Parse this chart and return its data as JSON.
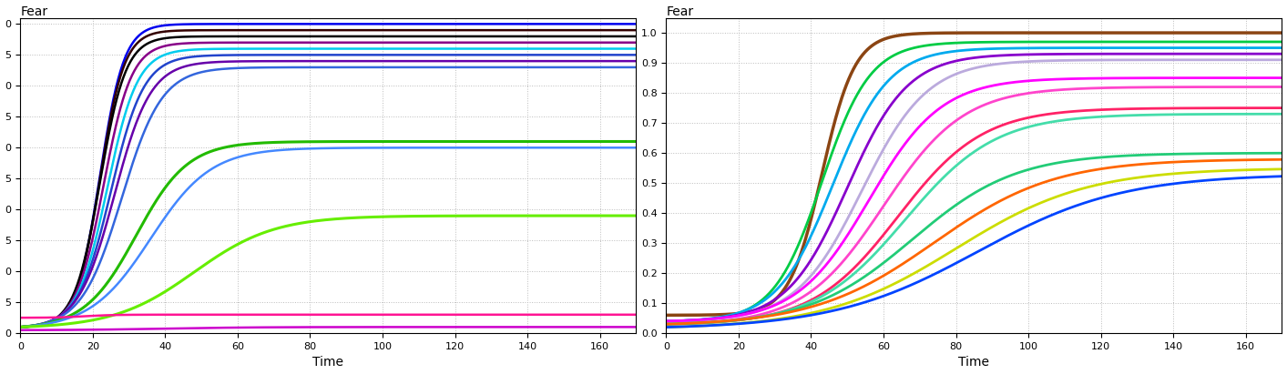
{
  "title_left": "Fear",
  "title_right": "Fear",
  "xlabel": "Time",
  "t_max": 170,
  "left_curves": [
    {
      "L": 1.0,
      "k": 0.3,
      "x0": 22,
      "y0": 0.02,
      "color": "#0000EE",
      "lw": 1.8
    },
    {
      "L": 0.98,
      "k": 0.3,
      "x0": 22,
      "y0": 0.02,
      "color": "#330000",
      "lw": 1.8
    },
    {
      "L": 0.96,
      "k": 0.28,
      "x0": 22,
      "y0": 0.02,
      "color": "#000000",
      "lw": 1.8
    },
    {
      "L": 0.94,
      "k": 0.26,
      "x0": 23,
      "y0": 0.02,
      "color": "#880088",
      "lw": 1.8
    },
    {
      "L": 0.92,
      "k": 0.24,
      "x0": 24,
      "y0": 0.02,
      "color": "#00CCEE",
      "lw": 1.8
    },
    {
      "L": 0.9,
      "k": 0.22,
      "x0": 25,
      "y0": 0.02,
      "color": "#2244CC",
      "lw": 1.8
    },
    {
      "L": 0.88,
      "k": 0.2,
      "x0": 26,
      "y0": 0.02,
      "color": "#6600AA",
      "lw": 1.8
    },
    {
      "L": 0.86,
      "k": 0.18,
      "x0": 28,
      "y0": 0.02,
      "color": "#3366DD",
      "lw": 1.8
    },
    {
      "L": 0.62,
      "k": 0.14,
      "x0": 32,
      "y0": 0.02,
      "color": "#22BB00",
      "lw": 2.2
    },
    {
      "L": 0.6,
      "k": 0.12,
      "x0": 36,
      "y0": 0.02,
      "color": "#4488FF",
      "lw": 1.8
    },
    {
      "L": 0.38,
      "k": 0.09,
      "x0": 48,
      "y0": 0.02,
      "color": "#66EE00",
      "lw": 2.2
    },
    {
      "L": 0.06,
      "k": 0.25,
      "x0": 18,
      "y0": 0.05,
      "color": "#FF1493",
      "lw": 1.8
    },
    {
      "L": 0.02,
      "k": 0.08,
      "x0": 40,
      "y0": 0.01,
      "color": "#CC00CC",
      "lw": 1.8
    }
  ],
  "right_curves": [
    {
      "L": 1.0,
      "k": 0.22,
      "x0": 43,
      "y0": 0.06,
      "color": "#8B4513",
      "lw": 2.5
    },
    {
      "L": 0.97,
      "k": 0.15,
      "x0": 43,
      "y0": 0.04,
      "color": "#00CC44",
      "lw": 2.0
    },
    {
      "L": 0.95,
      "k": 0.13,
      "x0": 46,
      "y0": 0.04,
      "color": "#00AAEE",
      "lw": 2.0
    },
    {
      "L": 0.93,
      "k": 0.12,
      "x0": 50,
      "y0": 0.04,
      "color": "#8800CC",
      "lw": 2.0
    },
    {
      "L": 0.91,
      "k": 0.11,
      "x0": 54,
      "y0": 0.04,
      "color": "#BBAADD",
      "lw": 2.0
    },
    {
      "L": 0.85,
      "k": 0.1,
      "x0": 56,
      "y0": 0.04,
      "color": "#FF00FF",
      "lw": 2.0
    },
    {
      "L": 0.82,
      "k": 0.09,
      "x0": 60,
      "y0": 0.03,
      "color": "#FF44CC",
      "lw": 2.0
    },
    {
      "L": 0.75,
      "k": 0.085,
      "x0": 64,
      "y0": 0.03,
      "color": "#FF2266",
      "lw": 2.0
    },
    {
      "L": 0.73,
      "k": 0.08,
      "x0": 66,
      "y0": 0.03,
      "color": "#44DDAA",
      "lw": 2.0
    },
    {
      "L": 0.6,
      "k": 0.07,
      "x0": 68,
      "y0": 0.03,
      "color": "#22CC77",
      "lw": 2.0
    },
    {
      "L": 0.58,
      "k": 0.06,
      "x0": 74,
      "y0": 0.03,
      "color": "#FF6600",
      "lw": 2.0
    },
    {
      "L": 0.55,
      "k": 0.055,
      "x0": 80,
      "y0": 0.02,
      "color": "#CCDD00",
      "lw": 2.0
    },
    {
      "L": 0.53,
      "k": 0.05,
      "x0": 86,
      "y0": 0.02,
      "color": "#0044FF",
      "lw": 2.0
    }
  ],
  "left_ytick_positions": [
    0.0,
    0.1,
    0.2,
    0.3,
    0.4,
    0.5,
    0.6,
    0.7,
    0.8,
    0.9,
    1.0
  ],
  "left_ytick_labels": [
    "0",
    "5",
    "0",
    "5",
    "0",
    "5",
    "0",
    "5",
    "0",
    "5",
    "0"
  ],
  "right_ytick_positions": [
    0.0,
    0.1,
    0.2,
    0.3,
    0.4,
    0.5,
    0.6,
    0.7,
    0.8,
    0.9,
    1.0
  ],
  "right_ytick_labels": [
    "0.0",
    "0.1",
    "0.2",
    "0.3",
    "0.4",
    "0.5",
    "0.6",
    "0.7",
    "0.8",
    "0.9",
    "1.0"
  ],
  "xticks": [
    0,
    20,
    40,
    60,
    80,
    100,
    120,
    140,
    160
  ],
  "grid_color": "#BBBBBB",
  "grid_style": ":",
  "bg_color": "#FFFFFF",
  "fig_bg": "#FFFFFF",
  "ylim_left": [
    0.0,
    1.02
  ],
  "ylim_right": [
    0.0,
    1.05
  ]
}
